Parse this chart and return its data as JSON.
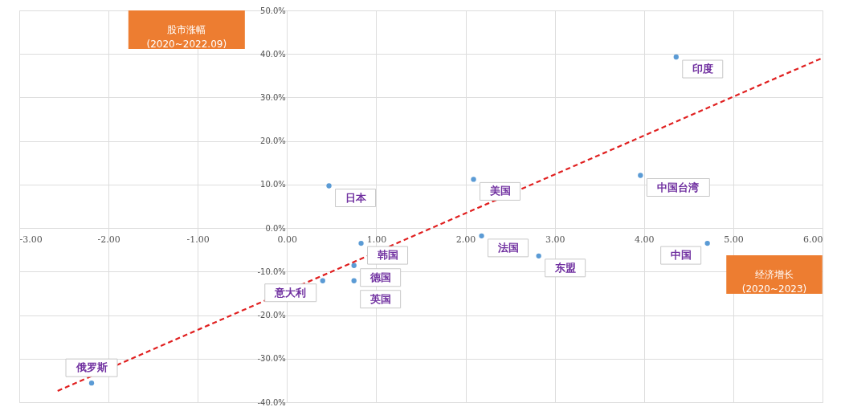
{
  "chart_data": {
    "type": "scatter",
    "xlabel": "经济增长\n(2020~2023)",
    "ylabel": "股市涨幅\n(2020~2022.09)",
    "xlim": [
      -3,
      6
    ],
    "ylim": [
      -40,
      50
    ],
    "xticks": [
      {
        "value": -3,
        "label": "-3.00"
      },
      {
        "value": -2,
        "label": "-2.00"
      },
      {
        "value": -1,
        "label": "-1.00"
      },
      {
        "value": 0,
        "label": "0.00"
      },
      {
        "value": 1,
        "label": "1.00"
      },
      {
        "value": 2,
        "label": "2.00"
      },
      {
        "value": 3,
        "label": "3.00"
      },
      {
        "value": 4,
        "label": "4.00"
      },
      {
        "value": 5,
        "label": "5.00"
      },
      {
        "value": 6,
        "label": "6.00"
      }
    ],
    "yticks": [
      {
        "value": -40,
        "label": "-40.0%"
      },
      {
        "value": -30,
        "label": "-30.0%"
      },
      {
        "value": -20,
        "label": "-20.0%"
      },
      {
        "value": -10,
        "label": "-10.0%"
      },
      {
        "value": 0,
        "label": "0.0%"
      },
      {
        "value": 10,
        "label": "10.0%"
      },
      {
        "value": 20,
        "label": "20.0%"
      },
      {
        "value": 30,
        "label": "30.0%"
      },
      {
        "value": 40,
        "label": "40.0%"
      },
      {
        "value": 50,
        "label": "50.0%"
      }
    ],
    "grid": true,
    "series": [
      {
        "color": "#5b9bd5",
        "marker": "circle",
        "x": [
          -2.19,
          0.47,
          0.83,
          0.75,
          0.4,
          0.75,
          2.09,
          2.18,
          2.82,
          3.96,
          4.36,
          4.71
        ],
        "values": [
          -35.6,
          9.7,
          -3.5,
          -8.6,
          -12.1,
          -12.1,
          11.2,
          -1.8,
          -6.4,
          12.1,
          39.3,
          -3.5
        ],
        "value_labels": [
          "俄罗斯",
          "日本",
          "韩国",
          "德国",
          "意大利",
          "英国",
          "美国",
          "法国",
          "东盟",
          "中国台湾",
          "印度",
          "中国"
        ]
      },
      {
        "type": "line",
        "color": "#e02020",
        "line_style": "dashed",
        "marker": "none",
        "x": [
          -2.57,
          6.0
        ],
        "values": [
          -37.4,
          39.1
        ]
      }
    ]
  }
}
